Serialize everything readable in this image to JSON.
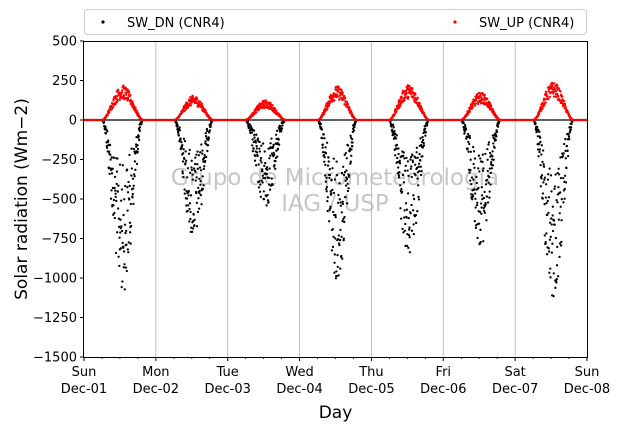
{
  "chart_data": {
    "type": "scatter",
    "xlabel": "Day",
    "ylabel": "Solar radiation (Wm−2)",
    "ylim": [
      -1500,
      500
    ],
    "yticks": [
      500,
      250,
      0,
      -250,
      -500,
      -750,
      -1000,
      -1250,
      -1500
    ],
    "ytick_labels": [
      "500",
      "250",
      "0",
      "−250",
      "−500",
      "−750",
      "−1000",
      "−1250",
      "−1500"
    ],
    "x_range": [
      "Dec-01 00:00",
      "Dec-08 00:00"
    ],
    "x_tick_labels": [
      {
        "day": "Sun",
        "date": "Dec-01"
      },
      {
        "day": "Mon",
        "date": "Dec-02"
      },
      {
        "day": "Tue",
        "date": "Dec-03"
      },
      {
        "day": "Wed",
        "date": "Dec-04"
      },
      {
        "day": "Thu",
        "date": "Dec-05"
      },
      {
        "day": "Fri",
        "date": "Dec-06"
      },
      {
        "day": "Sat",
        "date": "Dec-07"
      },
      {
        "day": "Sun",
        "date": "Dec-08"
      }
    ],
    "grid": "vertical, at day ticks",
    "zero_line": true,
    "legend_placement": "top, above plot, two columns",
    "watermark": [
      "Grupo de Micrometeorologia",
      "IAG / USP"
    ],
    "series": [
      {
        "name": "SW_DN (CNR4)",
        "color": "#000000",
        "marker": "dot",
        "values": [
          {
            "date": "Dec-01",
            "sunrise_h": 6.2,
            "sunset_h": 19.6,
            "approx_min": -1100,
            "approx_median": -450
          },
          {
            "date": "Dec-02",
            "sunrise_h": 6.3,
            "sunset_h": 19.0,
            "approx_min": -770,
            "approx_median": -330
          },
          {
            "date": "Dec-03",
            "sunrise_h": 6.0,
            "sunset_h": 19.2,
            "approx_min": -560,
            "approx_median": -320
          },
          {
            "date": "Dec-04",
            "sunrise_h": 6.2,
            "sunset_h": 19.0,
            "approx_min": -1020,
            "approx_median": -500
          },
          {
            "date": "Dec-05",
            "sunrise_h": 6.0,
            "sunset_h": 19.1,
            "approx_min": -920,
            "approx_median": -450
          },
          {
            "date": "Dec-06",
            "sunrise_h": 6.0,
            "sunset_h": 19.0,
            "approx_min": -810,
            "approx_median": -350
          },
          {
            "date": "Dec-07",
            "sunrise_h": 6.2,
            "sunset_h": 19.3,
            "approx_min": -1150,
            "approx_median": -650
          }
        ]
      },
      {
        "name": "SW_UP (CNR4)",
        "color": "#ff0000",
        "marker": "dot",
        "values": [
          {
            "date": "Dec-01",
            "sunrise_h": 6.2,
            "sunset_h": 19.6,
            "approx_max": 220
          },
          {
            "date": "Dec-02",
            "sunrise_h": 6.3,
            "sunset_h": 19.0,
            "approx_max": 155
          },
          {
            "date": "Dec-03",
            "sunrise_h": 6.0,
            "sunset_h": 19.2,
            "approx_max": 125
          },
          {
            "date": "Dec-04",
            "sunrise_h": 6.2,
            "sunset_h": 19.0,
            "approx_max": 215
          },
          {
            "date": "Dec-05",
            "sunrise_h": 6.0,
            "sunset_h": 19.1,
            "approx_max": 225
          },
          {
            "date": "Dec-06",
            "sunrise_h": 6.0,
            "sunset_h": 19.0,
            "approx_max": 175
          },
          {
            "date": "Dec-07",
            "sunrise_h": 6.2,
            "sunset_h": 19.3,
            "approx_max": 240
          }
        ]
      }
    ]
  }
}
